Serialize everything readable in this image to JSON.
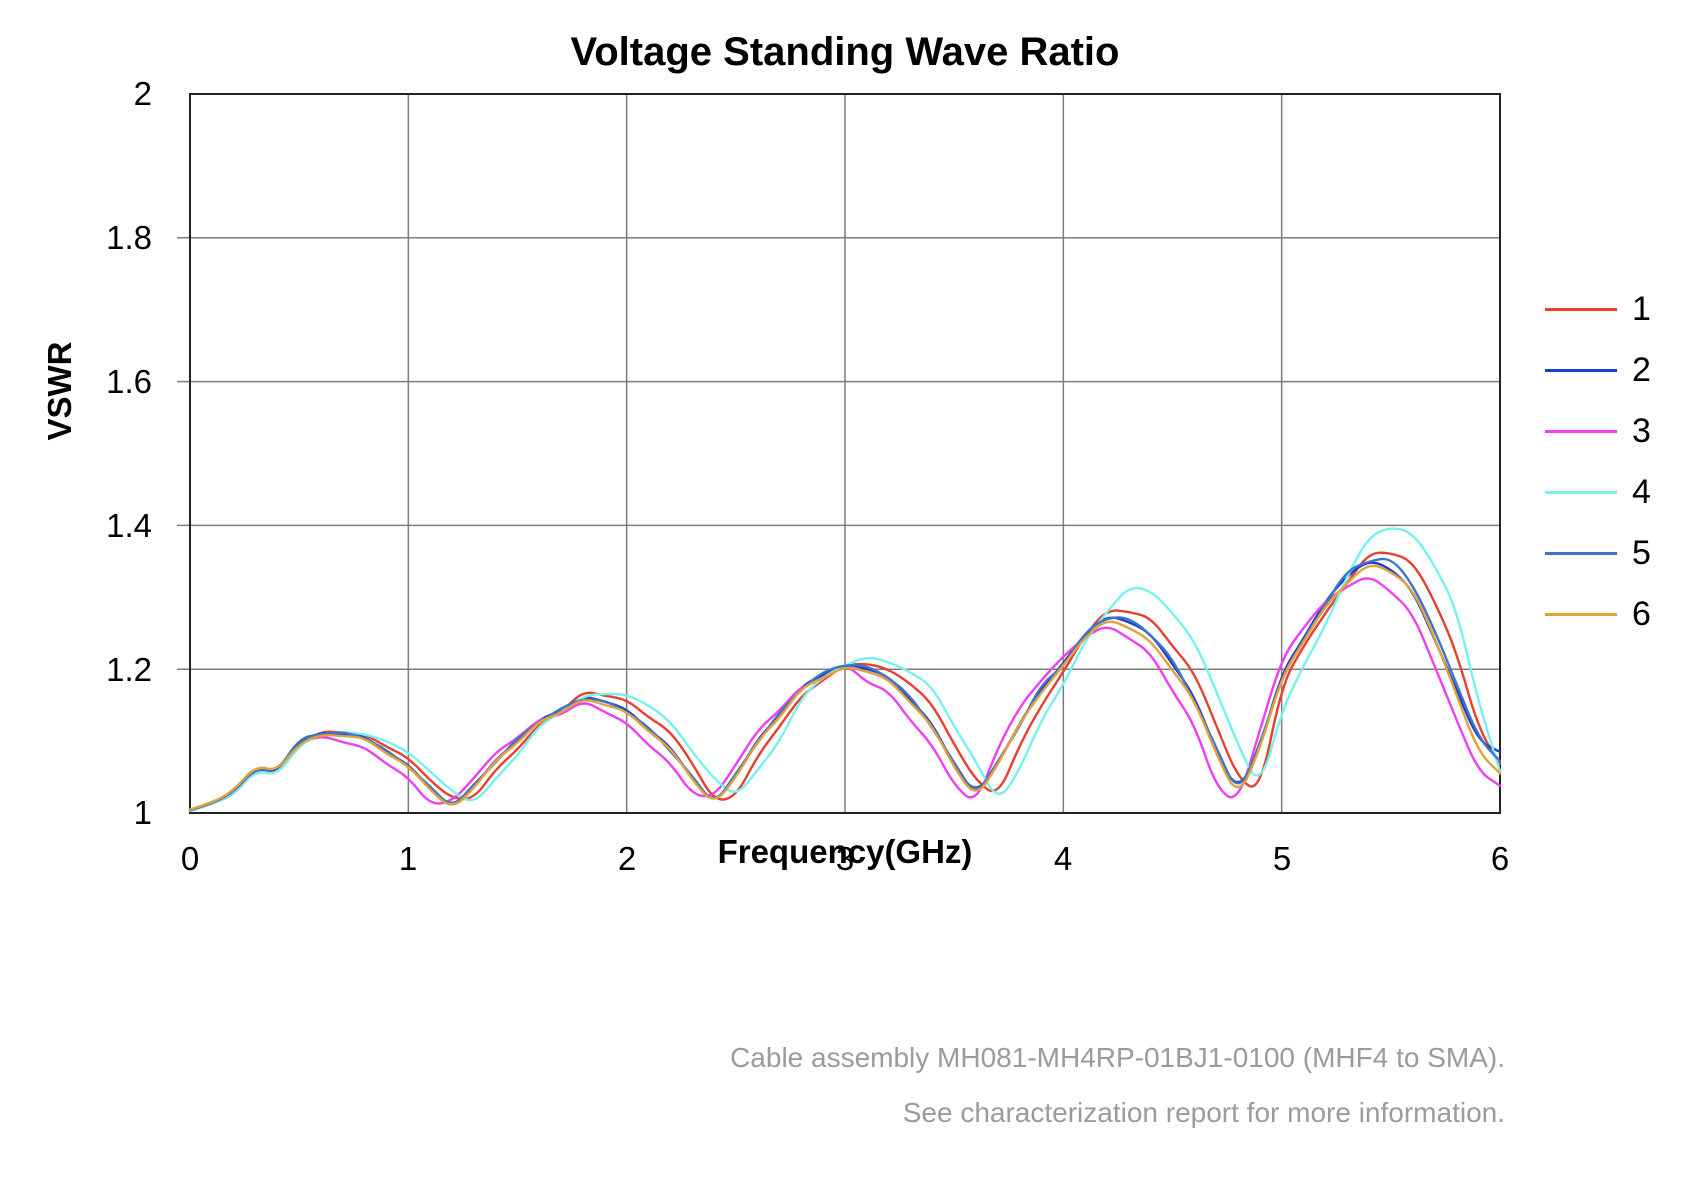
{
  "title": "Voltage Standing Wave Ratio",
  "axes": {
    "x_label": "Frequency(GHz)",
    "y_label": "VSWR",
    "x_ticks": [
      "0",
      "1",
      "2",
      "3",
      "4",
      "5",
      "6"
    ],
    "y_ticks": [
      "2",
      "1.8",
      "1.6",
      "1.4",
      "1.2",
      "1"
    ]
  },
  "legend": {
    "items": [
      {
        "label": "1"
      },
      {
        "label": "2"
      },
      {
        "label": "3"
      },
      {
        "label": "4"
      },
      {
        "label": "5"
      },
      {
        "label": "6"
      }
    ]
  },
  "caption": {
    "line1": "Cable assembly MH081-MH4RP-01BJ1-0100  (MHF4 to SMA).",
    "line2": "See characterization report for more information."
  },
  "colors": {
    "grid": "#7d7d7d",
    "frame": "#222222",
    "caption_text": "#9b9b9b"
  },
  "chart_data": {
    "type": "line",
    "title": "Voltage Standing Wave Ratio",
    "xlabel": "Frequency(GHz)",
    "ylabel": "VSWR",
    "xlim": [
      0,
      6
    ],
    "ylim": [
      1,
      2
    ],
    "grid": true,
    "x_gridlines": [
      1,
      2,
      3,
      4,
      5
    ],
    "y_gridlines": [
      1.2,
      1.4,
      1.6,
      1.8
    ],
    "legend_position": "right",
    "x_start": 0,
    "x_step": 0.1,
    "series": [
      {
        "name": "1",
        "color": "#e8402f",
        "values": [
          1.004,
          1.012,
          1.026,
          1.064,
          1.056,
          1.095,
          1.114,
          1.112,
          1.11,
          1.092,
          1.077,
          1.045,
          1.02,
          1.019,
          1.061,
          1.088,
          1.124,
          1.14,
          1.17,
          1.163,
          1.158,
          1.133,
          1.114,
          1.07,
          1.016,
          1.022,
          1.08,
          1.12,
          1.163,
          1.185,
          1.206,
          1.208,
          1.2,
          1.18,
          1.152,
          1.095,
          1.045,
          1.022,
          1.095,
          1.15,
          1.196,
          1.248,
          1.283,
          1.28,
          1.272,
          1.232,
          1.196,
          1.122,
          1.048,
          1.028,
          1.178,
          1.232,
          1.278,
          1.32,
          1.362,
          1.362,
          1.35,
          1.295,
          1.225,
          1.118,
          1.068
        ]
      },
      {
        "name": "2",
        "color": "#1b3ed2",
        "values": [
          1.003,
          1.012,
          1.028,
          1.062,
          1.055,
          1.1,
          1.112,
          1.11,
          1.107,
          1.084,
          1.068,
          1.033,
          1.007,
          1.035,
          1.075,
          1.099,
          1.131,
          1.142,
          1.163,
          1.155,
          1.145,
          1.116,
          1.093,
          1.047,
          1.012,
          1.05,
          1.103,
          1.135,
          1.177,
          1.192,
          1.207,
          1.201,
          1.19,
          1.157,
          1.125,
          1.065,
          1.025,
          1.068,
          1.125,
          1.172,
          1.208,
          1.25,
          1.275,
          1.266,
          1.25,
          1.207,
          1.163,
          1.086,
          1.028,
          1.09,
          1.195,
          1.242,
          1.295,
          1.33,
          1.352,
          1.34,
          1.31,
          1.242,
          1.172,
          1.1,
          1.085
        ]
      },
      {
        "name": "3",
        "color": "#ee3ff0",
        "values": [
          1.003,
          1.013,
          1.025,
          1.06,
          1.052,
          1.096,
          1.108,
          1.098,
          1.092,
          1.068,
          1.05,
          1.011,
          1.016,
          1.048,
          1.085,
          1.104,
          1.131,
          1.136,
          1.157,
          1.14,
          1.126,
          1.094,
          1.07,
          1.025,
          1.022,
          1.067,
          1.116,
          1.142,
          1.177,
          1.185,
          1.209,
          1.181,
          1.17,
          1.128,
          1.095,
          1.038,
          1.012,
          1.091,
          1.148,
          1.185,
          1.218,
          1.245,
          1.262,
          1.243,
          1.223,
          1.169,
          1.124,
          1.035,
          1.013,
          1.115,
          1.215,
          1.258,
          1.295,
          1.315,
          1.331,
          1.308,
          1.278,
          1.205,
          1.13,
          1.058,
          1.038
        ]
      },
      {
        "name": "4",
        "color": "#76f2ee",
        "values": [
          1.003,
          1.012,
          1.026,
          1.06,
          1.052,
          1.094,
          1.11,
          1.113,
          1.11,
          1.1,
          1.085,
          1.058,
          1.03,
          1.012,
          1.048,
          1.08,
          1.122,
          1.14,
          1.163,
          1.166,
          1.165,
          1.15,
          1.128,
          1.085,
          1.048,
          1.022,
          1.06,
          1.099,
          1.16,
          1.19,
          1.205,
          1.218,
          1.21,
          1.196,
          1.176,
          1.12,
          1.072,
          1.014,
          1.06,
          1.13,
          1.178,
          1.24,
          1.28,
          1.315,
          1.31,
          1.278,
          1.24,
          1.17,
          1.095,
          1.032,
          1.142,
          1.205,
          1.26,
          1.33,
          1.385,
          1.398,
          1.39,
          1.345,
          1.285,
          1.155,
          1.058
        ]
      },
      {
        "name": "5",
        "color": "#3d74c6",
        "values": [
          1.004,
          1.013,
          1.029,
          1.063,
          1.057,
          1.104,
          1.11,
          1.113,
          1.104,
          1.088,
          1.064,
          1.037,
          1.006,
          1.04,
          1.07,
          1.105,
          1.126,
          1.146,
          1.159,
          1.157,
          1.14,
          1.12,
          1.086,
          1.052,
          1.01,
          1.055,
          1.098,
          1.14,
          1.172,
          1.197,
          1.206,
          1.205,
          1.188,
          1.163,
          1.118,
          1.07,
          1.022,
          1.072,
          1.12,
          1.18,
          1.203,
          1.252,
          1.272,
          1.272,
          1.248,
          1.215,
          1.154,
          1.092,
          1.024,
          1.095,
          1.188,
          1.24,
          1.29,
          1.338,
          1.35,
          1.356,
          1.318,
          1.255,
          1.18,
          1.105,
          1.072
        ]
      },
      {
        "name": "6",
        "color": "#e2a23a",
        "values": [
          1.005,
          1.014,
          1.031,
          1.066,
          1.058,
          1.097,
          1.109,
          1.107,
          1.105,
          1.082,
          1.066,
          1.032,
          1.005,
          1.034,
          1.074,
          1.097,
          1.128,
          1.139,
          1.16,
          1.15,
          1.142,
          1.113,
          1.091,
          1.046,
          1.011,
          1.049,
          1.101,
          1.132,
          1.174,
          1.188,
          1.204,
          1.197,
          1.186,
          1.153,
          1.122,
          1.063,
          1.02,
          1.067,
          1.125,
          1.168,
          1.205,
          1.245,
          1.27,
          1.258,
          1.24,
          1.198,
          1.158,
          1.082,
          1.02,
          1.088,
          1.19,
          1.238,
          1.288,
          1.32,
          1.348,
          1.336,
          1.312,
          1.245,
          1.165,
          1.085,
          1.055
        ]
      }
    ]
  }
}
